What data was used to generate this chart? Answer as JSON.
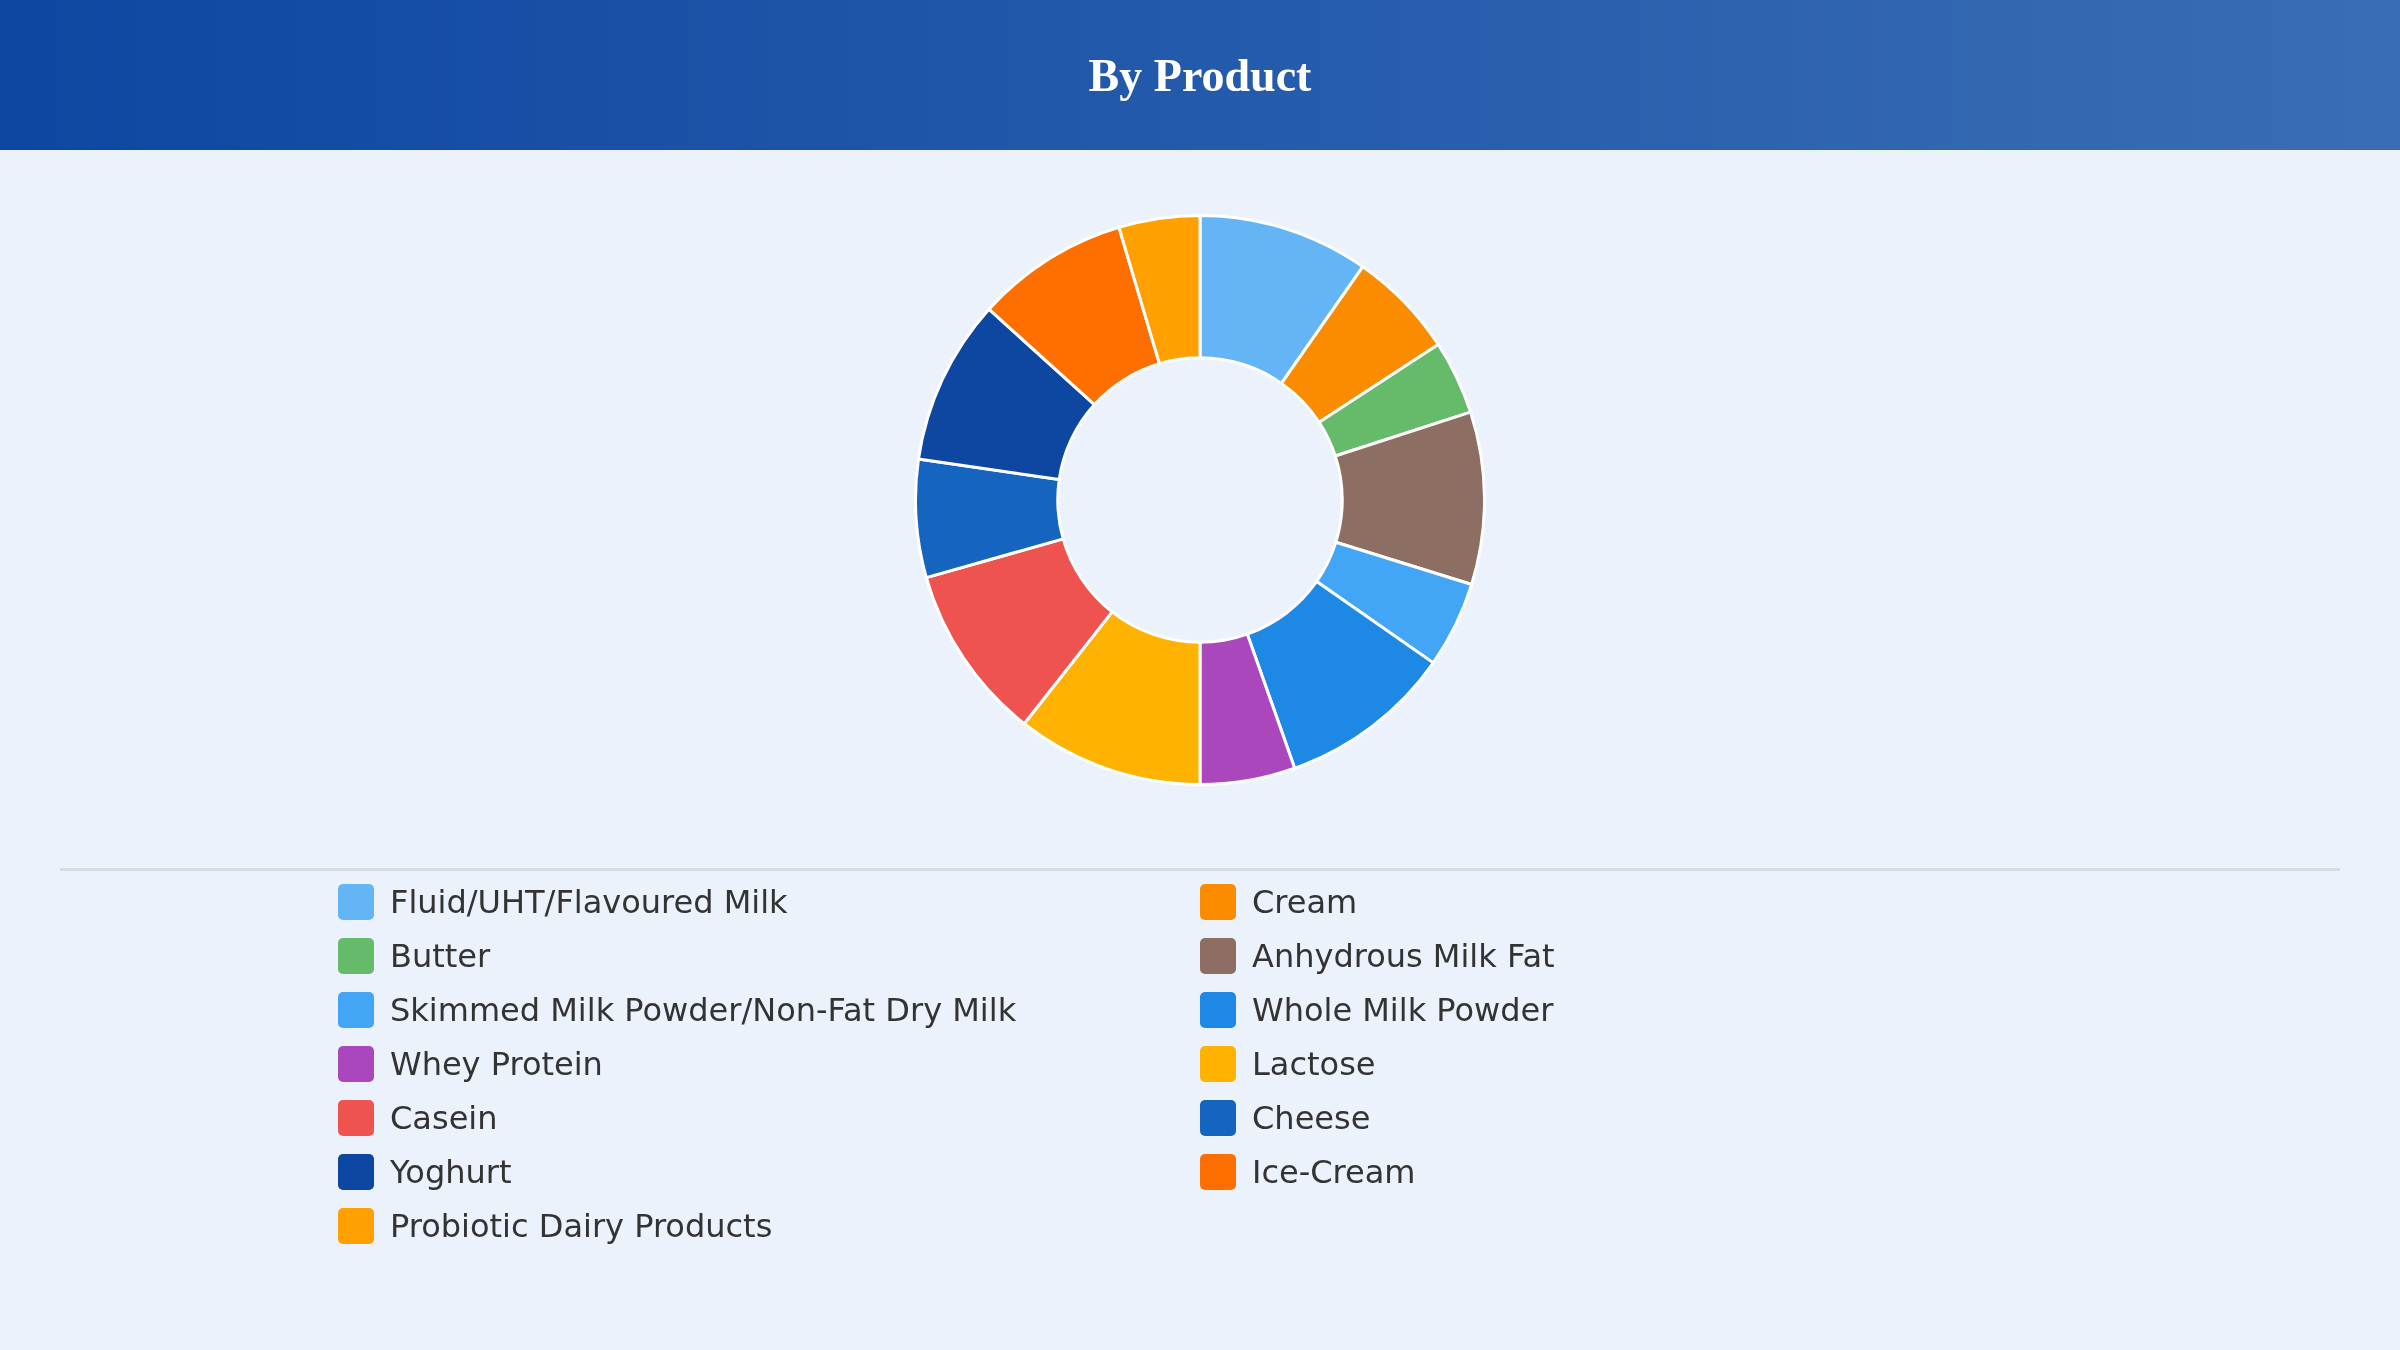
{
  "chart_data": {
    "type": "donut",
    "title": "By Product",
    "categories": [
      "Fluid/UHT/Flavoured Milk",
      "Cream",
      "Butter",
      "Anhydrous Milk Fat",
      "Skimmed Milk Powder/Non-Fat Dry Milk",
      "Whole Milk Powder",
      "Whey Protein",
      "Lactose",
      "Casein",
      "Cheese",
      "Yoghurt",
      "Ice-Cream",
      "Probiotic Dairy Products"
    ],
    "values": [
      9.7,
      6.1,
      4.2,
      9.8,
      4.9,
      9.9,
      5.4,
      10.6,
      10.0,
      6.7,
      9.4,
      8.7,
      4.6
    ],
    "colors": [
      "#64b5f6",
      "#fb8c00",
      "#66bb6a",
      "#8d6e63",
      "#42a5f5",
      "#1e88e5",
      "#ab47bc",
      "#ffb300",
      "#ef5350",
      "#1565c0",
      "#0d47a1",
      "#ff6f00",
      "#ffa000"
    ],
    "legend": "bottom"
  }
}
